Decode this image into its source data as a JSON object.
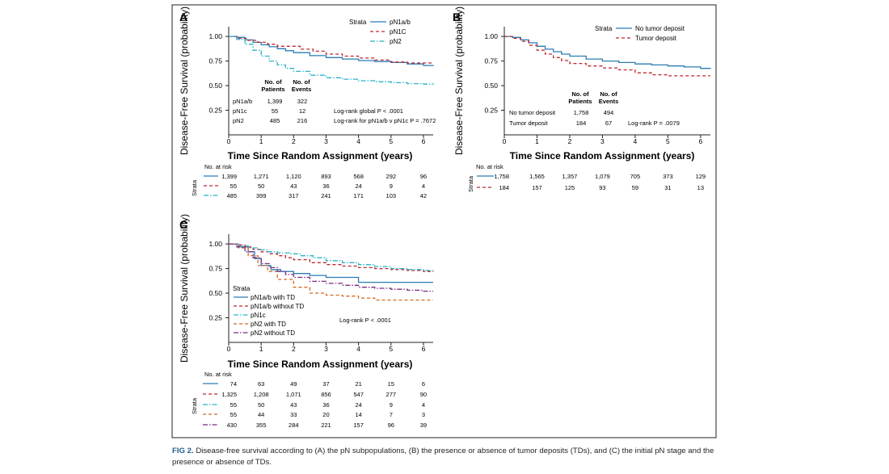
{
  "figure": {
    "caption_label": "FIG 2.",
    "caption_text": " Disease-free survival according to (A) the pN subpopulations, (B) the presence or absence of tumor deposits (TDs), and (C) the initial pN stage and the presence or absence of TDs."
  },
  "colors": {
    "blue": "#2b7bb3",
    "red": "#c0272d",
    "teal": "#2ab3c8",
    "orange": "#d2691e",
    "purple": "#7b2a80",
    "text": "#231f20"
  },
  "chart_data": [
    {
      "panel": "A",
      "type": "line",
      "title": "",
      "xlabel": "Time Since Random Assignment (years)",
      "ylabel": "Disease-Free Survival (probability)",
      "xlim": [
        0,
        6.3
      ],
      "ylim": [
        0,
        1.05
      ],
      "x_ticks": [
        "0",
        "1",
        "2",
        "3",
        "4",
        "5",
        "6"
      ],
      "y_ticks": [
        "0.25",
        "0.50",
        "0.75",
        "1.00"
      ],
      "legend_title": "Strata",
      "series": [
        {
          "name": "pN1a/b",
          "color": "blue",
          "dash": "solid",
          "x": [
            0,
            0.25,
            0.5,
            0.75,
            1,
            1.25,
            1.5,
            1.75,
            2,
            2.5,
            3,
            3.5,
            4,
            4.5,
            5,
            5.5,
            6,
            6.3
          ],
          "y": [
            1.0,
            0.99,
            0.965,
            0.94,
            0.915,
            0.895,
            0.875,
            0.855,
            0.835,
            0.805,
            0.785,
            0.77,
            0.755,
            0.745,
            0.735,
            0.72,
            0.705,
            0.7
          ]
        },
        {
          "name": "pN1C",
          "color": "red",
          "dash": "dash",
          "x": [
            0,
            0.3,
            0.6,
            0.9,
            1.2,
            1.5,
            1.9,
            2.2,
            2.6,
            3.0,
            3.5,
            4.0,
            4.5,
            5.0,
            5.5,
            6.0,
            6.3
          ],
          "y": [
            1.0,
            0.98,
            0.96,
            0.94,
            0.92,
            0.9,
            0.9,
            0.87,
            0.85,
            0.82,
            0.8,
            0.78,
            0.76,
            0.74,
            0.73,
            0.73,
            0.73
          ]
        },
        {
          "name": "pN2",
          "color": "teal",
          "dash": "dashdot",
          "x": [
            0,
            0.25,
            0.5,
            0.75,
            1,
            1.25,
            1.5,
            1.75,
            2,
            2.5,
            3,
            3.5,
            4,
            4.5,
            5,
            5.5,
            6,
            6.3
          ],
          "y": [
            1.0,
            0.97,
            0.92,
            0.86,
            0.8,
            0.75,
            0.71,
            0.675,
            0.645,
            0.605,
            0.58,
            0.565,
            0.55,
            0.54,
            0.53,
            0.52,
            0.515,
            0.51
          ]
        }
      ],
      "table": {
        "headers": [
          "No. of Patients",
          "No. of Events"
        ],
        "rows": [
          {
            "label": "pN1a/b",
            "patients": "1,399",
            "events": "322",
            "note": ""
          },
          {
            "label": "pN1c",
            "patients": "55",
            "events": "12",
            "note": "Log-rank global P < .0001"
          },
          {
            "label": "pN2",
            "patients": "485",
            "events": "216",
            "note": "Log-rank for pN1a/b v pN1c P = .7672"
          }
        ]
      },
      "risk": {
        "title": "No. at risk",
        "side_label": "Strata",
        "rows": [
          {
            "color": "blue",
            "dash": "solid",
            "values": [
              "1,399",
              "1,271",
              "1,120",
              "893",
              "568",
              "292",
              "96"
            ]
          },
          {
            "color": "red",
            "dash": "dash",
            "values": [
              "55",
              "50",
              "43",
              "36",
              "24",
              "9",
              "4"
            ]
          },
          {
            "color": "teal",
            "dash": "dashdot",
            "values": [
              "485",
              "399",
              "317",
              "241",
              "171",
              "103",
              "42"
            ]
          }
        ]
      }
    },
    {
      "panel": "B",
      "type": "line",
      "title": "",
      "xlabel": "Time Since Random Assignment (years)",
      "ylabel": "Disease-Free Survival (probability)",
      "xlim": [
        0,
        6.3
      ],
      "ylim": [
        0,
        1.05
      ],
      "x_ticks": [
        "0",
        "1",
        "2",
        "3",
        "4",
        "5",
        "6"
      ],
      "y_ticks": [
        "0.25",
        "0.50",
        "0.75",
        "1.00"
      ],
      "legend_title": "Strata",
      "series": [
        {
          "name": "No tumor deposit",
          "color": "blue",
          "dash": "solid",
          "x": [
            0,
            0.25,
            0.5,
            0.75,
            1,
            1.25,
            1.5,
            1.75,
            2,
            2.5,
            3,
            3.5,
            4,
            4.5,
            5,
            5.5,
            6,
            6.3
          ],
          "y": [
            1.0,
            0.99,
            0.965,
            0.935,
            0.9,
            0.87,
            0.845,
            0.82,
            0.8,
            0.77,
            0.75,
            0.735,
            0.72,
            0.71,
            0.7,
            0.69,
            0.675,
            0.67
          ]
        },
        {
          "name": "Tumor deposit",
          "color": "red",
          "dash": "dash",
          "x": [
            0,
            0.25,
            0.5,
            0.75,
            1,
            1.25,
            1.5,
            1.75,
            2,
            2.5,
            3,
            3.5,
            4,
            4.5,
            5,
            5.5,
            6,
            6.3
          ],
          "y": [
            1.0,
            0.98,
            0.95,
            0.91,
            0.86,
            0.82,
            0.785,
            0.755,
            0.725,
            0.7,
            0.68,
            0.66,
            0.63,
            0.61,
            0.6,
            0.6,
            0.6,
            0.6
          ]
        }
      ],
      "table": {
        "headers": [
          "No. of Patients",
          "No. of Events"
        ],
        "rows": [
          {
            "label": "No tumor deposit",
            "patients": "1,758",
            "events": "494",
            "note": ""
          },
          {
            "label": "Tumor deposit",
            "patients": "184",
            "events": "67",
            "note": "Log-rank P = .0079"
          }
        ]
      },
      "risk": {
        "title": "No. at risk",
        "side_label": "Strata",
        "rows": [
          {
            "color": "blue",
            "dash": "solid",
            "values": [
              "1,758",
              "1,565",
              "1,357",
              "1,079",
              "705",
              "373",
              "129"
            ]
          },
          {
            "color": "red",
            "dash": "dash",
            "values": [
              "184",
              "157",
              "125",
              "93",
              "59",
              "31",
              "13"
            ]
          }
        ]
      }
    },
    {
      "panel": "C",
      "type": "line",
      "title": "",
      "xlabel": "Time Since Random Assignment (years)",
      "ylabel": "Disease-Free Survival (probability)",
      "xlim": [
        0,
        6.3
      ],
      "ylim": [
        0,
        1.05
      ],
      "x_ticks": [
        "0",
        "1",
        "2",
        "3",
        "4",
        "5",
        "6"
      ],
      "y_ticks": [
        "0.25",
        "0.50",
        "0.75",
        "1.00"
      ],
      "legend_title": "Strata",
      "note": "Log-rank P < .0001",
      "series": [
        {
          "name": "pN1a/b with TD",
          "color": "blue",
          "dash": "solid",
          "x": [
            0,
            0.3,
            0.6,
            0.8,
            1.0,
            1.3,
            1.6,
            2.0,
            2.5,
            3.0,
            3.5,
            4.0,
            4.5,
            5.0,
            5.5,
            6.0,
            6.3
          ],
          "y": [
            1.0,
            0.97,
            0.92,
            0.85,
            0.78,
            0.74,
            0.72,
            0.7,
            0.68,
            0.66,
            0.66,
            0.61,
            0.61,
            0.61,
            0.61,
            0.61,
            0.61
          ]
        },
        {
          "name": "pN1a/b without TD",
          "color": "red",
          "dash": "dash",
          "x": [
            0,
            0.25,
            0.5,
            0.75,
            1,
            1.25,
            1.5,
            1.75,
            2,
            2.5,
            3,
            3.5,
            4,
            4.5,
            5,
            5.5,
            6,
            6.3
          ],
          "y": [
            1.0,
            0.99,
            0.97,
            0.945,
            0.92,
            0.9,
            0.88,
            0.86,
            0.84,
            0.81,
            0.79,
            0.775,
            0.76,
            0.75,
            0.74,
            0.73,
            0.72,
            0.715
          ]
        },
        {
          "name": "pN1c",
          "color": "teal",
          "dash": "dashdot",
          "x": [
            0,
            0.3,
            0.6,
            0.9,
            1.2,
            1.5,
            1.9,
            2.2,
            2.6,
            3.0,
            3.5,
            4.0,
            4.5,
            5.0,
            5.5,
            6.0,
            6.3
          ],
          "y": [
            1.0,
            0.98,
            0.96,
            0.94,
            0.92,
            0.91,
            0.9,
            0.88,
            0.86,
            0.83,
            0.81,
            0.79,
            0.77,
            0.75,
            0.74,
            0.73,
            0.73
          ]
        },
        {
          "name": "pN2 with TD",
          "color": "orange",
          "dash": "dash",
          "x": [
            0,
            0.3,
            0.6,
            0.9,
            1.2,
            1.5,
            2.0,
            2.5,
            3.0,
            3.5,
            4.0,
            4.5,
            5.0,
            5.5,
            6.0,
            6.3
          ],
          "y": [
            1.0,
            0.96,
            0.88,
            0.78,
            0.72,
            0.64,
            0.56,
            0.5,
            0.48,
            0.47,
            0.45,
            0.43,
            0.43,
            0.43,
            0.43,
            0.43
          ]
        },
        {
          "name": "pN2 without TD",
          "color": "purple",
          "dash": "dashdot",
          "x": [
            0,
            0.25,
            0.5,
            0.75,
            1,
            1.25,
            1.5,
            1.75,
            2,
            2.5,
            3,
            3.5,
            4,
            4.5,
            5,
            5.5,
            6,
            6.3
          ],
          "y": [
            1.0,
            0.97,
            0.92,
            0.86,
            0.8,
            0.76,
            0.72,
            0.69,
            0.66,
            0.62,
            0.6,
            0.58,
            0.56,
            0.55,
            0.54,
            0.53,
            0.52,
            0.52
          ]
        }
      ],
      "risk": {
        "title": "No. at risk",
        "side_label": "Strata",
        "rows": [
          {
            "color": "blue",
            "dash": "solid",
            "values": [
              "74",
              "63",
              "49",
              "37",
              "21",
              "15",
              "6"
            ]
          },
          {
            "color": "red",
            "dash": "dash",
            "values": [
              "1,325",
              "1,208",
              "1,071",
              "856",
              "547",
              "277",
              "90"
            ]
          },
          {
            "color": "teal",
            "dash": "dashdot",
            "values": [
              "55",
              "50",
              "43",
              "36",
              "24",
              "9",
              "4"
            ]
          },
          {
            "color": "orange",
            "dash": "dash",
            "values": [
              "55",
              "44",
              "33",
              "20",
              "14",
              "7",
              "3"
            ]
          },
          {
            "color": "purple",
            "dash": "dashdot",
            "values": [
              "430",
              "355",
              "284",
              "221",
              "157",
              "96",
              "39"
            ]
          }
        ]
      }
    }
  ]
}
